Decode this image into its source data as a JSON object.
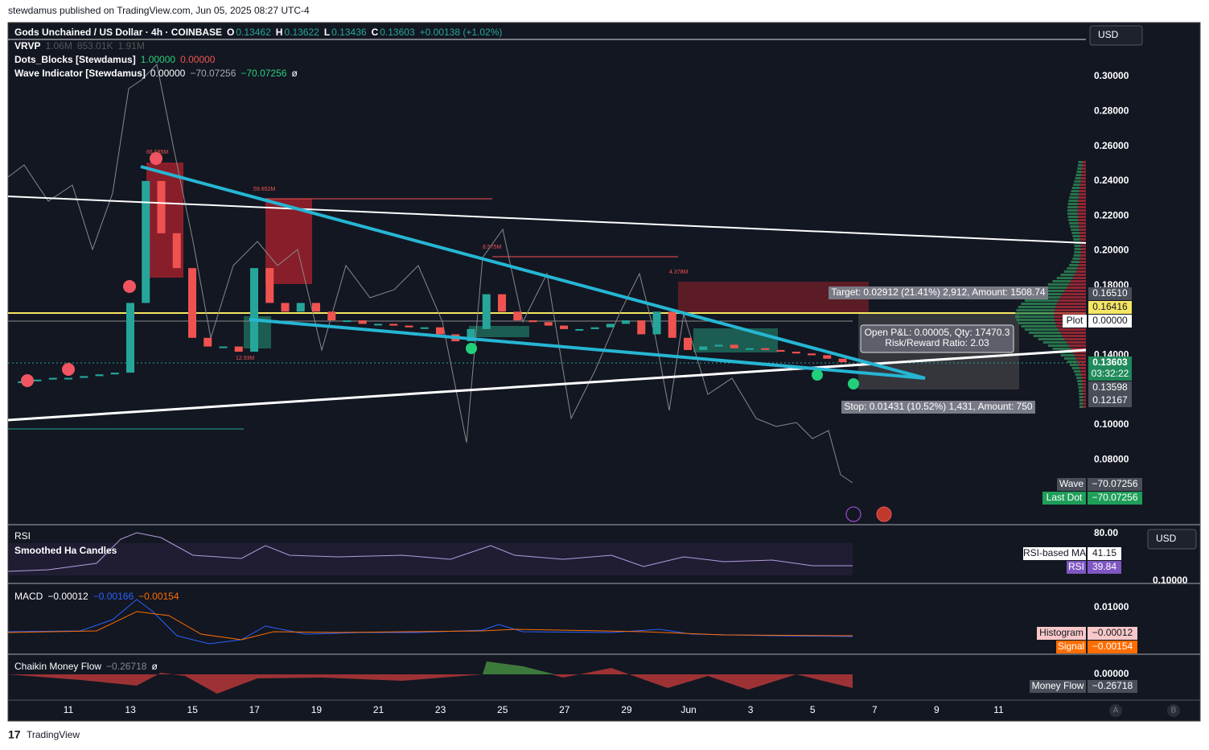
{
  "header": {
    "publisher": "stewdamus published on TradingView.com, Jun 05, 2025 08:27 UTC-4"
  },
  "symbol": {
    "name": "Gods Unchained / US Dollar · 4h · COINBASE",
    "o": "O",
    "open": "0.13462",
    "h": "H",
    "high": "0.13622",
    "l": "L",
    "low": "0.13436",
    "c": "C",
    "close": "0.13603",
    "change": "+0.00138 (+1.02%)"
  },
  "indicators": [
    {
      "name": "VRVP",
      "values": [
        "1.06M",
        "853.01K",
        "1.91M"
      ]
    },
    {
      "name": "Dots_Blocks [Stewdamus]",
      "values": [
        "1.00000",
        "0.00000"
      ]
    },
    {
      "name": "Wave Indicator [Stewdamus]",
      "values": [
        "0.00000",
        "−70.07256",
        "−70.07256",
        "ø"
      ]
    }
  ],
  "currency": "USD",
  "price_axis": [
    "0.30000",
    "0.28000",
    "0.26000",
    "0.24000",
    "0.22000",
    "0.20000",
    "0.18000",
    "0.14000",
    "0.10000",
    "0.08000"
  ],
  "price_tags": [
    "0.16510",
    "0.16416",
    "Plot",
    "0.00000",
    "0.13603",
    "03:32:22",
    "0.13598",
    "0.12167"
  ],
  "position": {
    "target": "Target: 0.02912 (21.41%) 2,912, Amount: 1508.74",
    "pnl": "Open P&L: 0.00005, Qty: 17470.3",
    "rr": "Risk/Reward Ratio: 2.03",
    "stop": "Stop: 0.01431 (10.52%) 1,431, Amount: 750"
  },
  "block_labels": [
    "66.585M",
    "59.652M",
    "8.575M",
    "4.378M",
    "12.93M"
  ],
  "wave_tags": [
    [
      "Wave",
      "−70.07256"
    ],
    [
      "Last Dot",
      "−70.07256"
    ]
  ],
  "rsi": {
    "title": "RSI",
    "subtitle": "Smoothed Ha Candles",
    "axis": "80.00",
    "extra": "0.10000",
    "currency": "USD",
    "ma_label": "RSI-based MA",
    "ma": "41.15",
    "rsi_label": "RSI",
    "rsi": "39.84"
  },
  "macd": {
    "title": "MACD",
    "values": [
      "−0.00012",
      "−0.00166",
      "−0.00154"
    ],
    "axis": "0.01000",
    "hist_label": "Histogram",
    "hist": "−0.00012",
    "signal_label": "Signal",
    "signal": "−0.00154"
  },
  "cmf": {
    "title": "Chaikin Money Flow",
    "values": [
      "−0.26718",
      "ø"
    ],
    "axis": "0.00000",
    "label": "Money Flow",
    "value": "−0.26718"
  },
  "time_axis": [
    "11",
    "13",
    "15",
    "17",
    "19",
    "21",
    "23",
    "25",
    "27",
    "29",
    "Jun",
    "3",
    "5",
    "7",
    "9",
    "11"
  ],
  "scale_buttons": [
    "A",
    "B"
  ],
  "footer": {
    "brand": "TradingView"
  },
  "candles": {
    "closes": [
      0.124,
      0.125,
      0.126,
      0.127,
      0.127,
      0.128,
      0.129,
      0.13,
      0.17,
      0.24,
      0.21,
      0.19,
      0.15,
      0.145,
      0.145,
      0.142,
      0.19,
      0.17,
      0.165,
      0.17,
      0.165,
      0.16,
      0.16,
      0.158,
      0.158,
      0.157,
      0.156,
      0.156,
      0.152,
      0.148,
      0.155,
      0.175,
      0.165,
      0.16,
      0.159,
      0.157,
      0.155,
      0.155,
      0.156,
      0.158,
      0.16,
      0.152,
      0.165,
      0.15,
      0.143,
      0.145,
      0.146,
      0.144,
      0.144,
      0.143,
      0.142,
      0.141,
      0.14,
      0.138,
      0.136
    ],
    "up": "#26a69a",
    "down": "#ef5350"
  }
}
